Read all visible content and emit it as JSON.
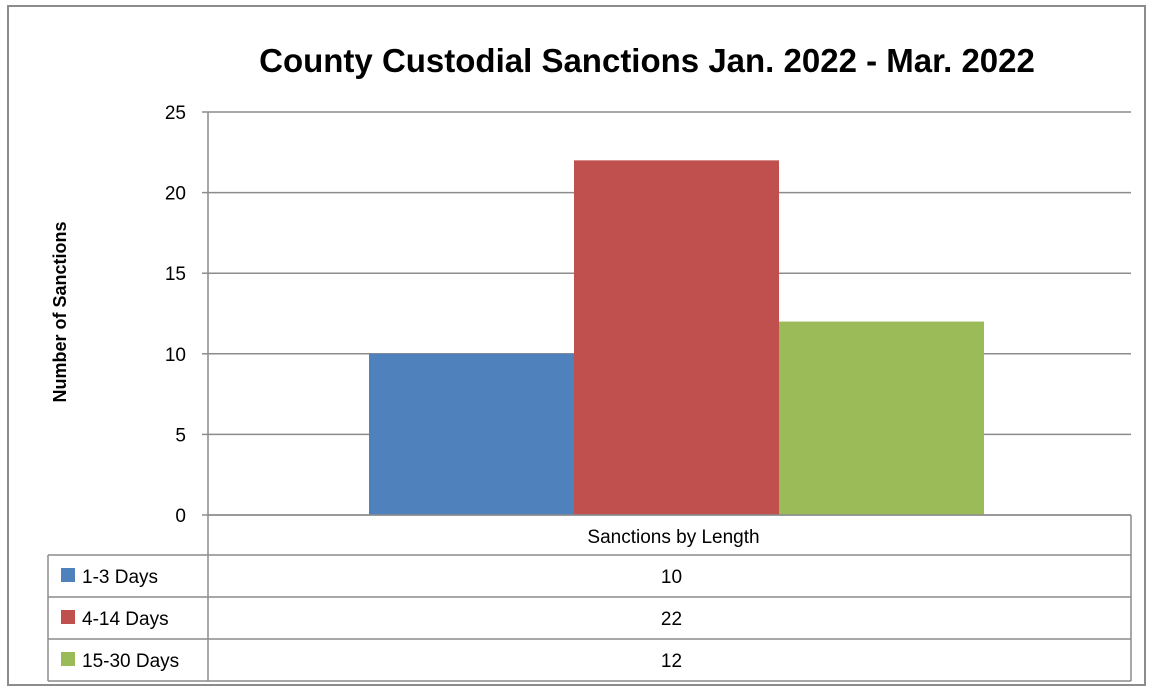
{
  "chart_data": {
    "type": "bar",
    "title": "County Custodial Sanctions Jan. 2022 - Mar. 2022",
    "xlabel": "",
    "ylabel": "Number of Sanctions",
    "categories": [
      "Sanctions by Length"
    ],
    "series": [
      {
        "name": "1-3 Days",
        "values": [
          10
        ],
        "color": "#4F81BD"
      },
      {
        "name": "4-14 Days",
        "values": [
          22
        ],
        "color": "#C0504D"
      },
      {
        "name": "15-30 Days",
        "values": [
          12
        ],
        "color": "#9BBB59"
      }
    ],
    "ylim": [
      0,
      25
    ],
    "yticks": [
      0,
      5,
      10,
      15,
      20,
      25
    ],
    "grid": true,
    "legend": "data-table-below",
    "data_table": {
      "header": "Sanctions by Length",
      "rows": [
        {
          "label": "1-3 Days",
          "value": "10"
        },
        {
          "label": "4-14 Days",
          "value": "22"
        },
        {
          "label": "15-30 Days",
          "value": "12"
        }
      ]
    }
  }
}
